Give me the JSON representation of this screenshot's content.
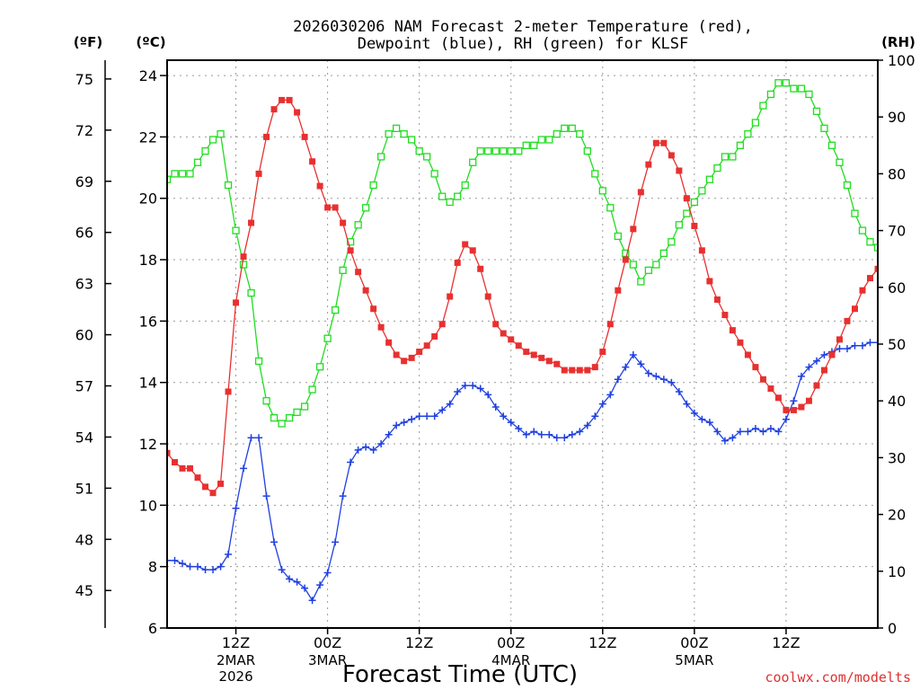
{
  "chart_data": {
    "type": "line",
    "title": [
      "2026030206 NAM Forecast 2-meter Temperature (red),",
      "Dewpoint (blue), RH (green) for KLSF"
    ],
    "xlabel": "Forecast Time (UTC)",
    "credit": "coolwx.com/modelts",
    "axes": {
      "celsius": {
        "unit": "(ºC)",
        "range": [
          6,
          24.5
        ],
        "ticks": [
          6,
          8,
          10,
          12,
          14,
          16,
          18,
          20,
          22,
          24
        ]
      },
      "fahrenheit": {
        "unit": "(ºF)",
        "ticks": [
          45,
          48,
          51,
          54,
          57,
          60,
          63,
          66,
          69,
          72,
          75
        ]
      },
      "rh": {
        "unit": "(RH)",
        "range": [
          0,
          100
        ],
        "ticks": [
          0,
          10,
          20,
          30,
          40,
          50,
          60,
          70,
          80,
          90,
          100
        ]
      }
    },
    "x_range_hours": [
      0,
      93
    ],
    "x_ticks": [
      {
        "hour": 9,
        "label": "12Z",
        "date": "2MAR",
        "year": "2026"
      },
      {
        "hour": 21,
        "label": "00Z",
        "date": "3MAR",
        "year": ""
      },
      {
        "hour": 33,
        "label": "12Z",
        "date": "",
        "year": ""
      },
      {
        "hour": 45,
        "label": "00Z",
        "date": "4MAR",
        "year": ""
      },
      {
        "hour": 57,
        "label": "12Z",
        "date": "",
        "year": ""
      },
      {
        "hour": 69,
        "label": "00Z",
        "date": "5MAR",
        "year": ""
      },
      {
        "hour": 81,
        "label": "12Z",
        "date": "",
        "year": ""
      }
    ],
    "x_hours": [
      0,
      1,
      2,
      3,
      4,
      5,
      6,
      7,
      8,
      9,
      10,
      11,
      12,
      13,
      14,
      15,
      16,
      17,
      18,
      19,
      20,
      21,
      22,
      23,
      24,
      25,
      26,
      27,
      28,
      29,
      30,
      31,
      32,
      33,
      34,
      35,
      36,
      37,
      38,
      39,
      40,
      41,
      42,
      43,
      44,
      45,
      46,
      47,
      48,
      49,
      50,
      51,
      52,
      53,
      54,
      55,
      56,
      57,
      58,
      59,
      60,
      61,
      62,
      63,
      64,
      65,
      66,
      67,
      68,
      69,
      70,
      71,
      72,
      73,
      74,
      75,
      76,
      77,
      78,
      79,
      80,
      81,
      82,
      83,
      84,
      85,
      86,
      87,
      88,
      89,
      90,
      91,
      92,
      93
    ],
    "series": [
      {
        "name": "Temperature",
        "color": "#e83030",
        "marker": "filled-square",
        "values": [
          11.7,
          11.4,
          11.2,
          11.2,
          10.9,
          10.6,
          10.4,
          10.7,
          13.7,
          16.6,
          18.1,
          19.2,
          20.8,
          22.0,
          22.9,
          23.2,
          23.2,
          22.8,
          22.0,
          21.2,
          20.4,
          19.7,
          19.7,
          19.2,
          18.3,
          17.6,
          17.0,
          16.4,
          15.8,
          15.3,
          14.9,
          14.7,
          14.8,
          15.0,
          15.2,
          15.5,
          15.9,
          16.8,
          17.9,
          18.5,
          18.3,
          17.7,
          16.8,
          15.9,
          15.6,
          15.4,
          15.2,
          15.0,
          14.9,
          14.8,
          14.7,
          14.6,
          14.4,
          14.4,
          14.4,
          14.4,
          14.5,
          15.0,
          15.9,
          17.0,
          18.0,
          19.0,
          20.2,
          21.1,
          21.8,
          21.8,
          21.4,
          20.9,
          20.0,
          19.1,
          18.3,
          17.3,
          16.7,
          16.2,
          15.7,
          15.3,
          14.9,
          14.5,
          14.1,
          13.8,
          13.5,
          13.1,
          13.1,
          13.2,
          13.4,
          13.9,
          14.4,
          14.9,
          15.4,
          16.0,
          16.4,
          17.0,
          17.4,
          17.7
        ]
      },
      {
        "name": "Dewpoint",
        "color": "#2040e0",
        "marker": "plus",
        "values": [
          8.2,
          8.2,
          8.1,
          8.0,
          8.0,
          7.9,
          7.9,
          8.0,
          8.4,
          9.9,
          11.2,
          12.2,
          12.2,
          10.3,
          8.8,
          7.9,
          7.6,
          7.5,
          7.3,
          6.9,
          7.4,
          7.8,
          8.8,
          10.3,
          11.4,
          11.8,
          11.9,
          11.8,
          12.0,
          12.3,
          12.6,
          12.7,
          12.8,
          12.9,
          12.9,
          12.9,
          13.1,
          13.3,
          13.7,
          13.9,
          13.9,
          13.8,
          13.6,
          13.2,
          12.9,
          12.7,
          12.5,
          12.3,
          12.4,
          12.3,
          12.3,
          12.2,
          12.2,
          12.3,
          12.4,
          12.6,
          12.9,
          13.3,
          13.6,
          14.1,
          14.5,
          14.9,
          14.6,
          14.3,
          14.2,
          14.1,
          14.0,
          13.7,
          13.3,
          13.0,
          12.8,
          12.7,
          12.4,
          12.1,
          12.2,
          12.4,
          12.4,
          12.5,
          12.4,
          12.5,
          12.4,
          12.8,
          13.4,
          14.2,
          14.5,
          14.7,
          14.9,
          15.0,
          15.1,
          15.1,
          15.2,
          15.2,
          15.3,
          15.3
        ]
      },
      {
        "name": "RH",
        "color": "#20dd20",
        "marker": "open-square",
        "values": [
          79,
          80,
          80,
          80,
          82,
          84,
          86,
          87,
          78,
          70,
          64,
          59,
          47,
          40,
          37,
          36,
          37,
          38,
          39,
          42,
          46,
          51,
          56,
          63,
          68,
          71,
          74,
          78,
          83,
          87,
          88,
          87,
          86,
          84,
          83,
          80,
          76,
          75,
          76,
          78,
          82,
          84,
          84,
          84,
          84,
          84,
          84,
          85,
          85,
          86,
          86,
          87,
          88,
          88,
          87,
          84,
          80,
          77,
          74,
          69,
          66,
          64,
          61,
          63,
          64,
          66,
          68,
          71,
          73,
          75,
          77,
          79,
          81,
          83,
          83,
          85,
          87,
          89,
          92,
          94,
          96,
          96,
          95,
          95,
          94,
          91,
          88,
          85,
          82,
          78,
          73,
          70,
          68,
          67
        ]
      }
    ]
  }
}
